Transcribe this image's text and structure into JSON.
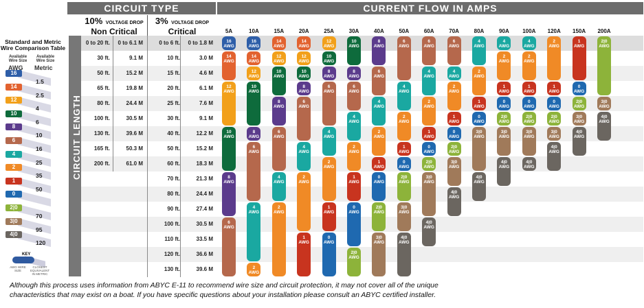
{
  "sidebar": {
    "title_line1": "Standard and Metric",
    "title_line2": "Wire Comparison Table",
    "col1_small": "Available Wire Size",
    "col1_big": "AWG",
    "col2_small": "Available Wire Size",
    "col2_big": "Metric",
    "comparisons": [
      {
        "awg": "16",
        "metric": "1.5",
        "color": "#2e5ea8"
      },
      {
        "awg": "14",
        "metric": "2.5",
        "color": "#e2622f"
      },
      {
        "awg": "12",
        "metric": "4",
        "color": "#f2a01a"
      },
      {
        "awg": "10",
        "metric": "6",
        "color": "#0e6b3c"
      },
      {
        "awg": "8",
        "metric": "10",
        "color": "#5b3b8c"
      },
      {
        "awg": "6",
        "metric": "16",
        "color": "#b5684c"
      },
      {
        "awg": "4",
        "metric": "25",
        "color": "#1aa8a1"
      },
      {
        "awg": "2",
        "metric": "35",
        "color": "#f08a26"
      },
      {
        "awg": "1",
        "metric": "50",
        "color": "#c8341f"
      },
      {
        "awg": "0",
        "metric": "",
        "color": "#1f69b0"
      },
      {
        "awg": "2|0",
        "metric": "70",
        "color": "#8db33a"
      },
      {
        "awg": "3|0",
        "metric": "95",
        "color": "#a07a5a"
      },
      {
        "awg": "4|0",
        "metric": "120",
        "color": "#6b6660"
      }
    ],
    "key_title": "KEY",
    "key_awg": "AWG WIRE SIZE",
    "key_metric": "CLOSEST EQUIVALENT IN METRIC"
  },
  "header": {
    "circuit_type": "CIRCUIT TYPE",
    "current_flow": "CURRENT FLOW IN AMPS",
    "drop10_pct": "10%",
    "drop10_sub": "VOLTAGE DROP",
    "drop10_name": "Non Critical",
    "drop3_pct": "3%",
    "drop3_sub": "VOLTAGE DROP",
    "drop3_name": "Critical",
    "circuit_length": "CIRCUIT LENGTH"
  },
  "amps": [
    "5A",
    "10A",
    "15A",
    "20A",
    "25A",
    "30A",
    "40A",
    "50A",
    "60A",
    "70A",
    "80A",
    "90A",
    "100A",
    "120A",
    "150A",
    "200A"
  ],
  "rows": [
    {
      "nc_ft": "0 to 20 ft.",
      "nc_m": "0 to 6.1 M",
      "c_ft": "0 to 6 ft.",
      "c_m": "0 to 1.8 M"
    },
    {
      "nc_ft": "30 ft.",
      "nc_m": "9.1 M",
      "c_ft": "10 ft.",
      "c_m": "3.0 M"
    },
    {
      "nc_ft": "50 ft.",
      "nc_m": "15.2 M",
      "c_ft": "15 ft.",
      "c_m": "4.6 M"
    },
    {
      "nc_ft": "65 ft.",
      "nc_m": "19.8 M",
      "c_ft": "20 ft.",
      "c_m": "6.1 M"
    },
    {
      "nc_ft": "80 ft.",
      "nc_m": "24.4 M",
      "c_ft": "25 ft.",
      "c_m": "7.6 M"
    },
    {
      "nc_ft": "100 ft.",
      "nc_m": "30.5 M",
      "c_ft": "30 ft.",
      "c_m": "9.1 M"
    },
    {
      "nc_ft": "130 ft.",
      "nc_m": "39.6 M",
      "c_ft": "40 ft.",
      "c_m": "12.2 M"
    },
    {
      "nc_ft": "165 ft.",
      "nc_m": "50.3 M",
      "c_ft": "50 ft.",
      "c_m": "15.2 M"
    },
    {
      "nc_ft": "200 ft.",
      "nc_m": "61.0 M",
      "c_ft": "60 ft.",
      "c_m": "18.3 M"
    },
    {
      "nc_ft": "",
      "nc_m": "",
      "c_ft": "70 ft.",
      "c_m": "21.3 M"
    },
    {
      "nc_ft": "",
      "nc_m": "",
      "c_ft": "80 ft.",
      "c_m": "24.4 M"
    },
    {
      "nc_ft": "",
      "nc_m": "",
      "c_ft": "90 ft.",
      "c_m": "27.4 M"
    },
    {
      "nc_ft": "",
      "nc_m": "",
      "c_ft": "100 ft.",
      "c_m": "30.5 M"
    },
    {
      "nc_ft": "",
      "nc_m": "",
      "c_ft": "110 ft.",
      "c_m": "33.5 M"
    },
    {
      "nc_ft": "",
      "nc_m": "",
      "c_ft": "120 ft.",
      "c_m": "36.6 M"
    },
    {
      "nc_ft": "",
      "nc_m": "",
      "c_ft": "130 ft.",
      "c_m": "39.6 M"
    }
  ],
  "gauge_colors": {
    "16": "#2e5ea8",
    "14": "#e2622f",
    "12": "#f2a01a",
    "10": "#0e6b3c",
    "8": "#5b3b8c",
    "6": "#b5684c",
    "4": "#1aa8a1",
    "2": "#f08a26",
    "1": "#c8341f",
    "0": "#1f69b0",
    "2|0": "#8db33a",
    "3|0": "#a07a5a",
    "4|0": "#6b6660"
  },
  "awg_label": "AWG",
  "columns": [
    [
      [
        "16",
        0,
        1
      ],
      [
        "14",
        1,
        3
      ],
      [
        "12",
        3,
        6
      ],
      [
        "10",
        6,
        9
      ],
      [
        "8",
        9,
        12
      ],
      [
        "6",
        12,
        16
      ]
    ],
    [
      [
        "16",
        0,
        1
      ],
      [
        "14",
        1,
        2
      ],
      [
        "12",
        2,
        3
      ],
      [
        "10",
        3,
        6
      ],
      [
        "8",
        6,
        7
      ],
      [
        "6",
        7,
        11
      ],
      [
        "4",
        11,
        15
      ],
      [
        "2",
        15,
        16
      ]
    ],
    [
      [
        "14",
        0,
        1
      ],
      [
        "12",
        1,
        2
      ],
      [
        "10",
        2,
        4
      ],
      [
        "8",
        4,
        6
      ],
      [
        "6",
        6,
        9
      ],
      [
        "4",
        9,
        11
      ],
      [
        "2",
        11,
        16
      ]
    ],
    [
      [
        "14",
        0,
        1
      ],
      [
        "12",
        1,
        2
      ],
      [
        "10",
        2,
        3
      ],
      [
        "8",
        3,
        4
      ],
      [
        "6",
        4,
        7
      ],
      [
        "4",
        7,
        9
      ],
      [
        "2",
        9,
        13
      ],
      [
        "1",
        13,
        16
      ]
    ],
    [
      [
        "12",
        0,
        1
      ],
      [
        "10",
        1,
        2
      ],
      [
        "8",
        2,
        3
      ],
      [
        "6",
        3,
        6
      ],
      [
        "4",
        6,
        8
      ],
      [
        "2",
        8,
        11
      ],
      [
        "1",
        11,
        13
      ],
      [
        "0",
        13,
        16
      ]
    ],
    [
      [
        "10",
        0,
        2
      ],
      [
        "8",
        2,
        3
      ],
      [
        "6",
        3,
        5
      ],
      [
        "4",
        5,
        7
      ],
      [
        "2",
        7,
        9
      ],
      [
        "1",
        9,
        11
      ],
      [
        "0",
        11,
        14
      ],
      [
        "2|0",
        14,
        16
      ]
    ],
    [
      [
        "8",
        0,
        2
      ],
      [
        "6",
        2,
        4
      ],
      [
        "4",
        4,
        6
      ],
      [
        "2",
        6,
        8
      ],
      [
        "1",
        8,
        9
      ],
      [
        "0",
        9,
        11
      ],
      [
        "2|0",
        11,
        13
      ],
      [
        "3|0",
        13,
        16
      ]
    ],
    [
      [
        "6",
        0,
        3
      ],
      [
        "4",
        3,
        5
      ],
      [
        "2",
        5,
        7
      ],
      [
        "1",
        7,
        8
      ],
      [
        "0",
        8,
        9
      ],
      [
        "2|0",
        9,
        11
      ],
      [
        "3|0",
        11,
        13
      ],
      [
        "4|0",
        13,
        16
      ]
    ],
    [
      [
        "6",
        0,
        2
      ],
      [
        "4",
        2,
        4
      ],
      [
        "2",
        4,
        6
      ],
      [
        "1",
        6,
        7
      ],
      [
        "0",
        7,
        8
      ],
      [
        "2|0",
        8,
        9
      ],
      [
        "3|0",
        9,
        12
      ],
      [
        "4|0",
        12,
        14
      ]
    ],
    [
      [
        "6",
        0,
        2
      ],
      [
        "4",
        2,
        3
      ],
      [
        "2",
        3,
        5
      ],
      [
        "1",
        5,
        6
      ],
      [
        "0",
        6,
        7
      ],
      [
        "2|0",
        7,
        8
      ],
      [
        "3|0",
        8,
        10
      ],
      [
        "4|0",
        10,
        12
      ]
    ],
    [
      [
        "4",
        0,
        2
      ],
      [
        "2",
        2,
        4
      ],
      [
        "1",
        4,
        5
      ],
      [
        "0",
        5,
        6
      ],
      [
        "3|0",
        6,
        9
      ],
      [
        "4|0",
        9,
        11
      ]
    ],
    [
      [
        "4",
        0,
        1
      ],
      [
        "2",
        1,
        3
      ],
      [
        "1",
        3,
        4
      ],
      [
        "0",
        4,
        5
      ],
      [
        "2|0",
        5,
        6
      ],
      [
        "3|0",
        6,
        8
      ],
      [
        "4|0",
        8,
        10
      ]
    ],
    [
      [
        "4",
        0,
        1
      ],
      [
        "2",
        1,
        3
      ],
      [
        "1",
        3,
        4
      ],
      [
        "0",
        4,
        5
      ],
      [
        "2|0",
        5,
        6
      ],
      [
        "3|0",
        6,
        8
      ],
      [
        "4|0",
        8,
        9
      ]
    ],
    [
      [
        "2",
        0,
        3
      ],
      [
        "1",
        3,
        4
      ],
      [
        "0",
        4,
        5
      ],
      [
        "2|0",
        5,
        6
      ],
      [
        "3|0",
        6,
        7
      ],
      [
        "4|0",
        7,
        9
      ]
    ],
    [
      [
        "1",
        0,
        3
      ],
      [
        "0",
        3,
        4
      ],
      [
        "2|0",
        4,
        5
      ],
      [
        "3|0",
        5,
        6
      ],
      [
        "4|0",
        6,
        8
      ]
    ],
    [
      [
        "2|0",
        0,
        4
      ],
      [
        "3|0",
        4,
        5
      ],
      [
        "4|0",
        5,
        7
      ]
    ]
  ],
  "footnote_line1": "Although this process uses information from ABYC E-11 to recommend wire size and circuit protection, it may not cover all of the unique",
  "footnote_line2": "characteristics that may exist on a boat. If you have specific questions about your installation please consult an ABYC certified installer."
}
